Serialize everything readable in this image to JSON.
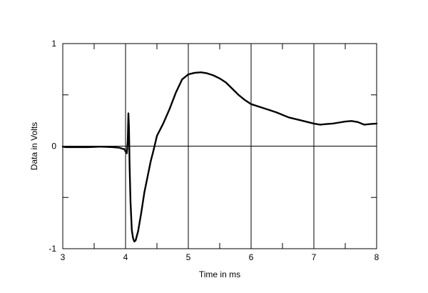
{
  "chart_data": {
    "type": "line",
    "xlabel": "Time in ms",
    "ylabel": "Data in Volts",
    "xlim": [
      3,
      8
    ],
    "ylim": [
      -1,
      1
    ],
    "x_ticks": [
      "3",
      "4",
      "5",
      "6",
      "7",
      "8"
    ],
    "y_ticks": [
      "1",
      "0",
      "-1"
    ],
    "grid": true,
    "series": [
      {
        "color": "#000000",
        "x": [
          3.0,
          3.05,
          3.2,
          3.4,
          3.6,
          3.8,
          3.9,
          3.98,
          4.0,
          4.02,
          4.035,
          4.045,
          4.055,
          4.065,
          4.08,
          4.1,
          4.12,
          4.14,
          4.16,
          4.2,
          4.25,
          4.3,
          4.35,
          4.4,
          4.45,
          4.5,
          4.6,
          4.7,
          4.8,
          4.9,
          5.0,
          5.1,
          5.2,
          5.3,
          5.4,
          5.5,
          5.6,
          5.7,
          5.8,
          5.9,
          6.0,
          6.2,
          6.4,
          6.6,
          6.8,
          7.0,
          7.1,
          7.2,
          7.3,
          7.4,
          7.5,
          7.6,
          7.7,
          7.8,
          7.9,
          8.0
        ],
        "y": [
          -0.005,
          -0.01,
          -0.01,
          -0.01,
          -0.005,
          -0.01,
          -0.015,
          -0.03,
          -0.05,
          -0.07,
          0.05,
          0.32,
          0.18,
          -0.2,
          -0.55,
          -0.82,
          -0.9,
          -0.93,
          -0.92,
          -0.83,
          -0.65,
          -0.45,
          -0.3,
          -0.15,
          -0.03,
          0.1,
          0.22,
          0.36,
          0.52,
          0.65,
          0.7,
          0.715,
          0.72,
          0.71,
          0.69,
          0.66,
          0.62,
          0.56,
          0.5,
          0.45,
          0.41,
          0.37,
          0.33,
          0.28,
          0.25,
          0.22,
          0.21,
          0.215,
          0.22,
          0.23,
          0.24,
          0.245,
          0.235,
          0.21,
          0.215,
          0.22
        ]
      }
    ]
  }
}
